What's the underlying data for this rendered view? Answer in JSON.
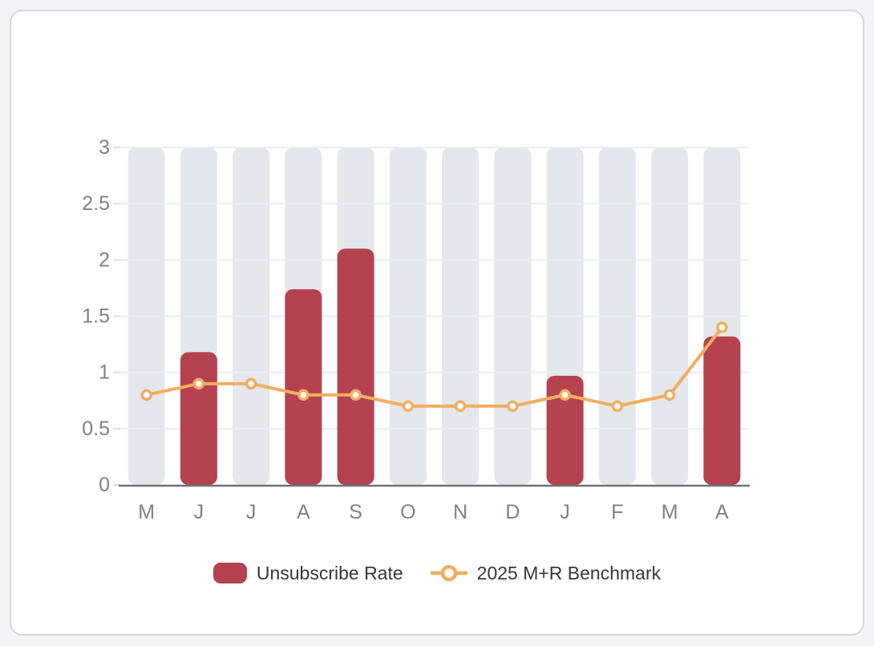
{
  "title": "Unsubscribe Rate",
  "chart_data": {
    "type": "bar",
    "title": "Unsubscribe Rate",
    "categories": [
      "M",
      "J",
      "J",
      "A",
      "S",
      "O",
      "N",
      "D",
      "J",
      "F",
      "M",
      "A"
    ],
    "series": [
      {
        "name": "Unsubscribe Rate",
        "type": "bar",
        "color": "#b5424f",
        "values": [
          null,
          1.18,
          null,
          1.74,
          2.1,
          null,
          null,
          null,
          0.97,
          null,
          null,
          1.32
        ]
      },
      {
        "name": "2025 M+R Benchmark",
        "type": "line",
        "color": "#f2ae60",
        "marker_fill": "#ffffff",
        "values": [
          0.8,
          0.9,
          0.9,
          0.8,
          0.8,
          0.7,
          0.7,
          0.7,
          0.8,
          0.7,
          0.8,
          1.4
        ]
      }
    ],
    "xlabel": "",
    "ylabel": "",
    "ylim": [
      0,
      3
    ],
    "yticks": [
      "0",
      "0.5",
      "1",
      "1.5",
      "2",
      "2.5",
      "3"
    ],
    "grid": true,
    "legend_position": "bottom",
    "column_background_color": "#e4e7ec",
    "gridline_color": "#e9edf4",
    "tick_color": "#d9dde3",
    "axis_line_color": "#6e727a",
    "axis_text_color": "#7c828c"
  }
}
